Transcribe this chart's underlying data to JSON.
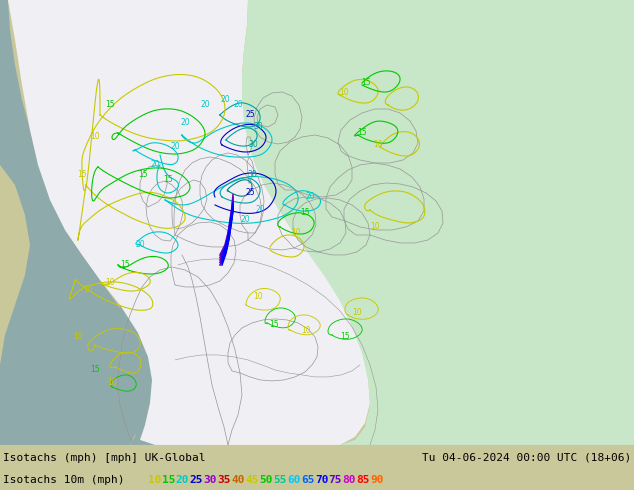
{
  "title_left": "Isotachs (mph) [mph] UK-Global",
  "title_right": "Tu 04-06-2024 00:00 UTC (18+06)",
  "legend_label": "Isotachs 10m (mph)",
  "legend_values": [
    10,
    15,
    20,
    25,
    30,
    35,
    40,
    45,
    50,
    55,
    60,
    65,
    70,
    75,
    80,
    85,
    90
  ],
  "legend_colors": [
    "#c8c800",
    "#00c800",
    "#00c8c8",
    "#0000c8",
    "#9600c8",
    "#c80000",
    "#c86400",
    "#c8c800",
    "#00c800",
    "#00c896",
    "#00c8ff",
    "#0064ff",
    "#0000ff",
    "#6400c8",
    "#c800c8",
    "#ff0000",
    "#ff6400"
  ],
  "bg_land_color": "#c8c89b",
  "bg_water_color": "#8faaaa",
  "bg_white_cone": "#f0f0f4",
  "bg_green_cone": "#c8e6c8",
  "border_color": "#969696",
  "figsize": [
    6.34,
    4.9
  ],
  "dpi": 100,
  "bottom_bg": "#c8c8c8",
  "text_color": "#000000",
  "font_size": 8.0
}
